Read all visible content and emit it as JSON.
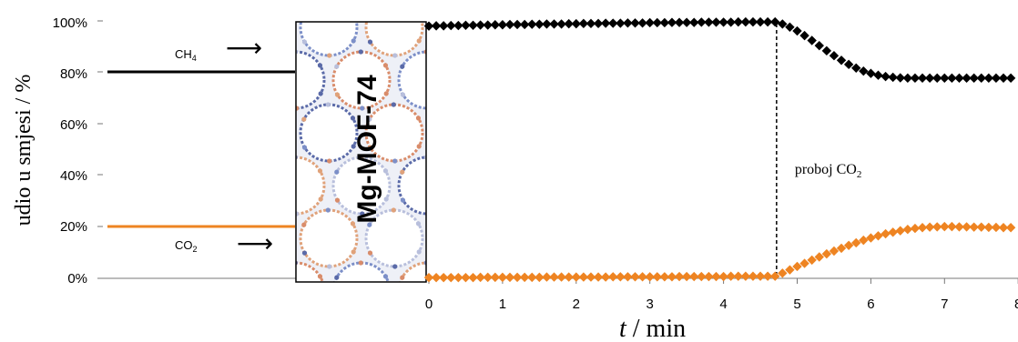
{
  "chart_data": {
    "type": "scatter",
    "title": "",
    "xlabel_var": "t",
    "xlabel_unit": " / min",
    "ylabel": "udio u smjesi / %",
    "xlim": [
      0,
      8
    ],
    "ylim": [
      0,
      100
    ],
    "x_ticks": [
      "0",
      "1",
      "2",
      "3",
      "4",
      "5",
      "6",
      "7",
      "8"
    ],
    "y_ticks": [
      "0%",
      "20%",
      "40%",
      "60%",
      "80%",
      "100%"
    ],
    "grid": false,
    "legend": "none",
    "feed": {
      "ch4_label": "CH",
      "ch4_sub": "4",
      "ch4_value": 80,
      "co2_label": "CO",
      "co2_sub": "2",
      "co2_value": 20,
      "arrow": "⟶"
    },
    "column_label": "Mg-MOF-74",
    "breakthrough": {
      "x": 4.72,
      "label": "proboj CO",
      "label_sub": "2"
    },
    "series": [
      {
        "name": "CH4",
        "color": "#000000",
        "x": [
          0.0,
          0.1,
          0.2,
          0.3,
          0.4,
          0.5,
          0.6,
          0.7,
          0.8,
          0.9,
          1.0,
          1.1,
          1.2,
          1.3,
          1.4,
          1.5,
          1.6,
          1.7,
          1.8,
          1.9,
          2.0,
          2.1,
          2.2,
          2.3,
          2.4,
          2.5,
          2.6,
          2.7,
          2.8,
          2.9,
          3.0,
          3.1,
          3.2,
          3.3,
          3.4,
          3.5,
          3.6,
          3.7,
          3.8,
          3.9,
          4.0,
          4.1,
          4.2,
          4.3,
          4.4,
          4.5,
          4.6,
          4.7,
          4.8,
          4.9,
          5.0,
          5.1,
          5.2,
          5.3,
          5.4,
          5.5,
          5.6,
          5.7,
          5.8,
          5.9,
          6.0,
          6.1,
          6.2,
          6.3,
          6.4,
          6.5,
          6.6,
          6.7,
          6.8,
          6.9,
          7.0,
          7.1,
          7.2,
          7.3,
          7.4,
          7.5,
          7.6,
          7.7,
          7.8,
          7.9,
          8.0
        ],
        "y": [
          98.0,
          98.1,
          98.1,
          98.2,
          98.2,
          98.3,
          98.3,
          98.4,
          98.4,
          98.5,
          98.5,
          98.6,
          98.6,
          98.6,
          98.7,
          98.7,
          98.8,
          98.8,
          98.8,
          98.9,
          98.9,
          99.0,
          99.0,
          99.0,
          99.1,
          99.1,
          99.1,
          99.2,
          99.2,
          99.2,
          99.3,
          99.3,
          99.3,
          99.4,
          99.4,
          99.4,
          99.4,
          99.5,
          99.5,
          99.5,
          99.5,
          99.5,
          99.6,
          99.6,
          99.6,
          99.6,
          99.6,
          99.6,
          98.8,
          97.6,
          96.1,
          94.3,
          92.4,
          90.4,
          88.4,
          86.5,
          84.7,
          83.1,
          81.7,
          80.5,
          79.6,
          78.9,
          78.4,
          78.1,
          77.9,
          77.8,
          77.8,
          77.8,
          77.8,
          77.8,
          77.8,
          77.8,
          77.8,
          77.8,
          77.8,
          77.8,
          77.8,
          77.8,
          77.8,
          77.8,
          77.8
        ]
      },
      {
        "name": "CO2",
        "color": "#ee8422",
        "x": [
          0.0,
          0.1,
          0.2,
          0.3,
          0.4,
          0.5,
          0.6,
          0.7,
          0.8,
          0.9,
          1.0,
          1.1,
          1.2,
          1.3,
          1.4,
          1.5,
          1.6,
          1.7,
          1.8,
          1.9,
          2.0,
          2.1,
          2.2,
          2.3,
          2.4,
          2.5,
          2.6,
          2.7,
          2.8,
          2.9,
          3.0,
          3.1,
          3.2,
          3.3,
          3.4,
          3.5,
          3.6,
          3.7,
          3.8,
          3.9,
          4.0,
          4.1,
          4.2,
          4.3,
          4.4,
          4.5,
          4.6,
          4.7,
          4.8,
          4.9,
          5.0,
          5.1,
          5.2,
          5.3,
          5.4,
          5.5,
          5.6,
          5.7,
          5.8,
          5.9,
          6.0,
          6.1,
          6.2,
          6.3,
          6.4,
          6.5,
          6.6,
          6.7,
          6.8,
          6.9,
          7.0,
          7.1,
          7.2,
          7.3,
          7.4,
          7.5,
          7.6,
          7.7,
          7.8,
          7.9,
          8.0
        ],
        "y": [
          0.3,
          0.3,
          0.3,
          0.3,
          0.3,
          0.3,
          0.3,
          0.4,
          0.4,
          0.4,
          0.4,
          0.4,
          0.4,
          0.4,
          0.4,
          0.4,
          0.5,
          0.5,
          0.5,
          0.5,
          0.5,
          0.5,
          0.5,
          0.5,
          0.5,
          0.6,
          0.6,
          0.6,
          0.6,
          0.6,
          0.6,
          0.6,
          0.6,
          0.6,
          0.7,
          0.7,
          0.7,
          0.7,
          0.7,
          0.7,
          0.7,
          0.8,
          0.8,
          0.8,
          0.8,
          0.8,
          0.8,
          0.8,
          2.0,
          3.3,
          4.6,
          5.8,
          7.1,
          8.3,
          9.5,
          10.6,
          11.7,
          12.8,
          13.8,
          14.8,
          15.7,
          16.5,
          17.3,
          17.9,
          18.5,
          19.0,
          19.4,
          19.7,
          19.9,
          20.0,
          20.1,
          20.1,
          20.0,
          20.0,
          19.9,
          19.9,
          19.8,
          19.8,
          19.7,
          19.7,
          19.6
        ]
      }
    ]
  }
}
